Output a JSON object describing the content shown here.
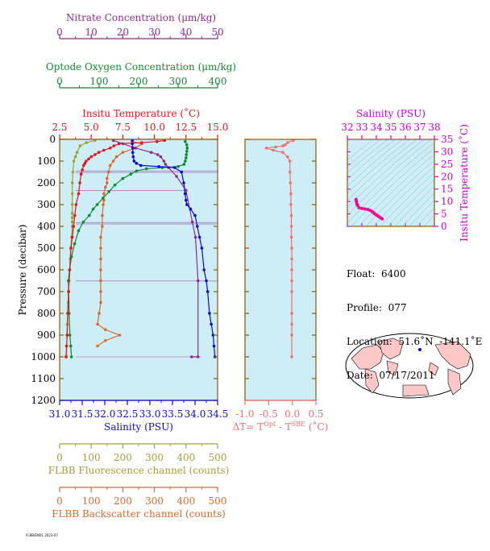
{
  "colors": {
    "nitrate": "#8e2c8e",
    "oxygen": "#118a2f",
    "temperature": "#e4141b",
    "salinity": "#0a0ad4",
    "fluorescence": "#a0a03a",
    "backscatter": "#d9692a",
    "dT": "#f07070",
    "plot_bg": "#cdeef7",
    "frame": "#8b5a00",
    "ts_line": "#ff0090"
  },
  "chart_data": [
    {
      "id": "main_profile",
      "type": "line",
      "ylabel": "Pressure (decibar)",
      "ylim": [
        1200,
        0
      ],
      "yticks": [
        0,
        100,
        200,
        300,
        400,
        500,
        600,
        700,
        800,
        900,
        1000,
        1100,
        1200
      ],
      "ytick_labels": [
        "0",
        "100",
        "200",
        "300",
        "400",
        "500",
        "600",
        "700",
        "800",
        "900",
        "1000",
        "1100",
        "1200"
      ],
      "axes": {
        "nitrate": {
          "label": "Nitrate Concentration (μm/kg)",
          "range": [
            0,
            50
          ],
          "ticks": [
            0,
            10,
            20,
            30,
            40,
            50
          ],
          "tick_labels": [
            "0",
            "10",
            "20",
            "30",
            "40",
            "50"
          ]
        },
        "oxygen": {
          "label": "Optode Oxygen Concentration (μm/kg)",
          "range": [
            0,
            400
          ],
          "ticks": [
            0,
            100,
            200,
            300,
            400
          ],
          "tick_labels": [
            "0",
            "100",
            "200",
            "300",
            "400"
          ]
        },
        "temperature": {
          "label": "Insitu Temperature (˚C)",
          "range": [
            2.5,
            15.0
          ],
          "ticks": [
            2.5,
            5.0,
            7.5,
            10.0,
            12.5,
            15.0
          ],
          "tick_labels": [
            "2.5",
            "5.0",
            "7.5",
            "10.0",
            "12.5",
            "15.0"
          ]
        },
        "salinity": {
          "label": "Salinity (PSU)",
          "range": [
            31.0,
            34.5
          ],
          "ticks": [
            31.0,
            31.5,
            32.0,
            32.5,
            33.0,
            33.5,
            34.0,
            34.5
          ],
          "tick_labels": [
            "31.0",
            "31.5",
            "32.0",
            "32.5",
            "33.0",
            "33.5",
            "34.0",
            "34.5"
          ]
        },
        "fluorescence": {
          "label": "FLBB Fluorescence channel (counts)",
          "range": [
            0,
            500
          ],
          "ticks": [
            0,
            100,
            200,
            300,
            400,
            500
          ],
          "tick_labels": [
            "0",
            "100",
            "200",
            "300",
            "400",
            "500"
          ]
        },
        "backscatter": {
          "label": "FLBB Backscatter channel (counts)",
          "range": [
            0,
            500
          ],
          "ticks": [
            0,
            100,
            200,
            300,
            400,
            500
          ],
          "tick_labels": [
            "0",
            "100",
            "200",
            "300",
            "400",
            "500"
          ]
        }
      },
      "series": [
        {
          "name": "Nitrate Concentration (μm/kg)",
          "axis": "nitrate",
          "x": [
            17,
            20,
            24,
            29,
            31,
            32,
            33,
            33.5,
            34.5,
            37,
            40,
            42,
            43,
            43.8,
            43.8,
            41.8
          ],
          "y": [
            5,
            20,
            40,
            60,
            70,
            80,
            100,
            115,
            130,
            170,
            235,
            380,
            450,
            650,
            1000,
            1000
          ]
        },
        {
          "name": "Optode Oxygen Concentration (μm/kg)",
          "axis": "oxygen",
          "x": [
            318,
            322,
            323,
            322,
            321,
            320,
            318,
            315,
            300,
            260,
            220,
            195,
            180,
            160,
            140,
            125,
            110,
            95,
            85,
            75,
            60,
            48,
            38,
            30,
            25,
            22,
            23,
            24,
            26,
            28,
            30
          ],
          "y": [
            10,
            25,
            40,
            55,
            70,
            85,
            100,
            115,
            125,
            130,
            135,
            145,
            160,
            180,
            210,
            240,
            270,
            300,
            320,
            350,
            380,
            420,
            480,
            540,
            600,
            650,
            700,
            800,
            900,
            950,
            1000
          ]
        },
        {
          "name": "Insitu Temperature (˚C)",
          "axis": "temperature",
          "x": [
            10.8,
            10.2,
            9.0,
            7.2,
            6.8,
            6.5,
            6.0,
            5.6,
            5.3,
            5.0,
            4.8,
            4.6,
            4.5,
            4.4,
            4.3,
            4.2,
            4.1,
            4.0,
            3.8,
            3.7,
            3.6,
            3.5,
            3.4,
            3.3,
            3.2,
            3.15,
            3.1,
            3.05,
            3.0
          ],
          "y": [
            5,
            10,
            15,
            20,
            30,
            40,
            50,
            60,
            70,
            80,
            90,
            100,
            110,
            120,
            140,
            160,
            200,
            250,
            300,
            350,
            400,
            450,
            500,
            600,
            700,
            800,
            900,
            950,
            1000
          ]
        },
        {
          "name": "Salinity (PSU)",
          "axis": "salinity",
          "x": [
            32.61,
            32.61,
            32.62,
            32.62,
            32.63,
            32.65,
            32.7,
            32.8,
            33.2,
            33.55,
            33.7,
            33.75,
            33.78,
            33.8,
            33.82,
            33.9,
            34.0,
            34.05,
            34.1,
            34.15,
            34.2,
            34.25,
            34.28,
            34.32,
            34.36,
            34.4,
            34.42,
            34.44
          ],
          "y": [
            5,
            20,
            40,
            60,
            80,
            100,
            110,
            120,
            125,
            130,
            150,
            200,
            250,
            280,
            300,
            320,
            350,
            400,
            450,
            500,
            600,
            650,
            700,
            800,
            850,
            900,
            950,
            1000
          ]
        },
        {
          "name": "FLBB Fluorescence channel (counts)",
          "axis": "fluorescence",
          "x": [
            112,
            85,
            65,
            55,
            50,
            45,
            42,
            40,
            40,
            40,
            40,
            40,
            40,
            40,
            38,
            35,
            33,
            32,
            30,
            28,
            27,
            25,
            24,
            23,
            22
          ],
          "y": [
            5,
            15,
            30,
            60,
            80,
            100,
            150,
            200,
            250,
            300,
            340,
            360,
            380,
            400,
            450,
            500,
            550,
            600,
            650,
            700,
            750,
            800,
            850,
            900,
            1000
          ]
        },
        {
          "name": "FLBB Backscatter channel (counts)",
          "axis": "backscatter",
          "x": [
            230,
            260,
            240,
            200,
            180,
            170,
            160,
            155,
            150,
            150,
            145,
            140,
            140,
            138,
            135,
            135,
            130,
            130,
            130,
            130,
            130,
            130,
            130,
            125,
            120,
            145,
            190,
            145,
            120
          ],
          "y": [
            10,
            20,
            40,
            60,
            80,
            100,
            120,
            150,
            180,
            200,
            220,
            250,
            280,
            300,
            350,
            400,
            450,
            500,
            550,
            600,
            650,
            700,
            750,
            800,
            850,
            875,
            900,
            925,
            950
          ]
        }
      ]
    },
    {
      "id": "delta_t",
      "type": "line",
      "xlabel": "ΔT= T",
      "xlabel_sup1": "Opt",
      "xlabel_mid": " - T",
      "xlabel_sup2": "SBE",
      "xlabel_tail": " (˚C)",
      "xlim": [
        -1.0,
        0.5
      ],
      "xticks": [
        -1.0,
        -0.5,
        0.0,
        0.5
      ],
      "xtick_labels": [
        "-1.0",
        "-0.5",
        "0.0",
        "0.5"
      ],
      "ylim": [
        1200,
        0
      ],
      "series": [
        {
          "name": "",
          "x": [
            0.02,
            -0.1,
            -0.15,
            -0.2,
            -0.35,
            -0.55,
            -0.4,
            -0.2,
            -0.1,
            -0.05,
            -0.05,
            -0.04,
            -0.03,
            -0.03,
            -0.02,
            -0.02,
            -0.02,
            -0.01,
            -0.01,
            -0.01,
            -0.01,
            -0.01,
            -0.01,
            -0.01,
            -0.01,
            -0.01
          ],
          "y": [
            5,
            15,
            25,
            30,
            35,
            40,
            50,
            60,
            80,
            100,
            150,
            200,
            250,
            300,
            350,
            400,
            450,
            500,
            550,
            600,
            650,
            700,
            800,
            850,
            900,
            1000
          ]
        }
      ]
    },
    {
      "id": "ts_diagram",
      "type": "line",
      "title": "Salinity (PSU)",
      "ylabel": "Insitu Temperature (˚C)",
      "xlim": [
        32,
        38
      ],
      "ylim": [
        0,
        35
      ],
      "xticks": [
        32,
        33,
        34,
        35,
        36,
        37,
        38
      ],
      "xtick_labels": [
        "32",
        "33",
        "34",
        "35",
        "36",
        "37",
        "38"
      ],
      "yticks": [
        0,
        5,
        10,
        15,
        20,
        25,
        30,
        35
      ],
      "ytick_labels": [
        "0",
        "5",
        "10",
        "15",
        "20",
        "25",
        "30",
        "35"
      ],
      "series": [
        {
          "name": "",
          "x": [
            32.6,
            32.62,
            32.65,
            32.7,
            32.8,
            33.0,
            33.2,
            33.4,
            33.55,
            33.7,
            33.8,
            33.9,
            34.0,
            34.1,
            34.2,
            34.3,
            34.4
          ],
          "y": [
            10.8,
            10.0,
            9.0,
            8.5,
            7.5,
            7.2,
            7.0,
            6.8,
            6.5,
            6.0,
            5.5,
            5.0,
            4.6,
            4.2,
            3.8,
            3.4,
            3.0
          ]
        }
      ]
    }
  ],
  "float_info": {
    "float": "Float:  6400",
    "profile": "Profile:  077",
    "location": "Location:  51.6˚N  -141.1˚E",
    "date": "Date:  07/17/2011"
  },
  "map": {
    "marker_lat": 51.6,
    "marker_lon": -141.1,
    "marker_color": "#0000ff"
  },
  "footer_text": "FLBB/EN01 2023-07"
}
